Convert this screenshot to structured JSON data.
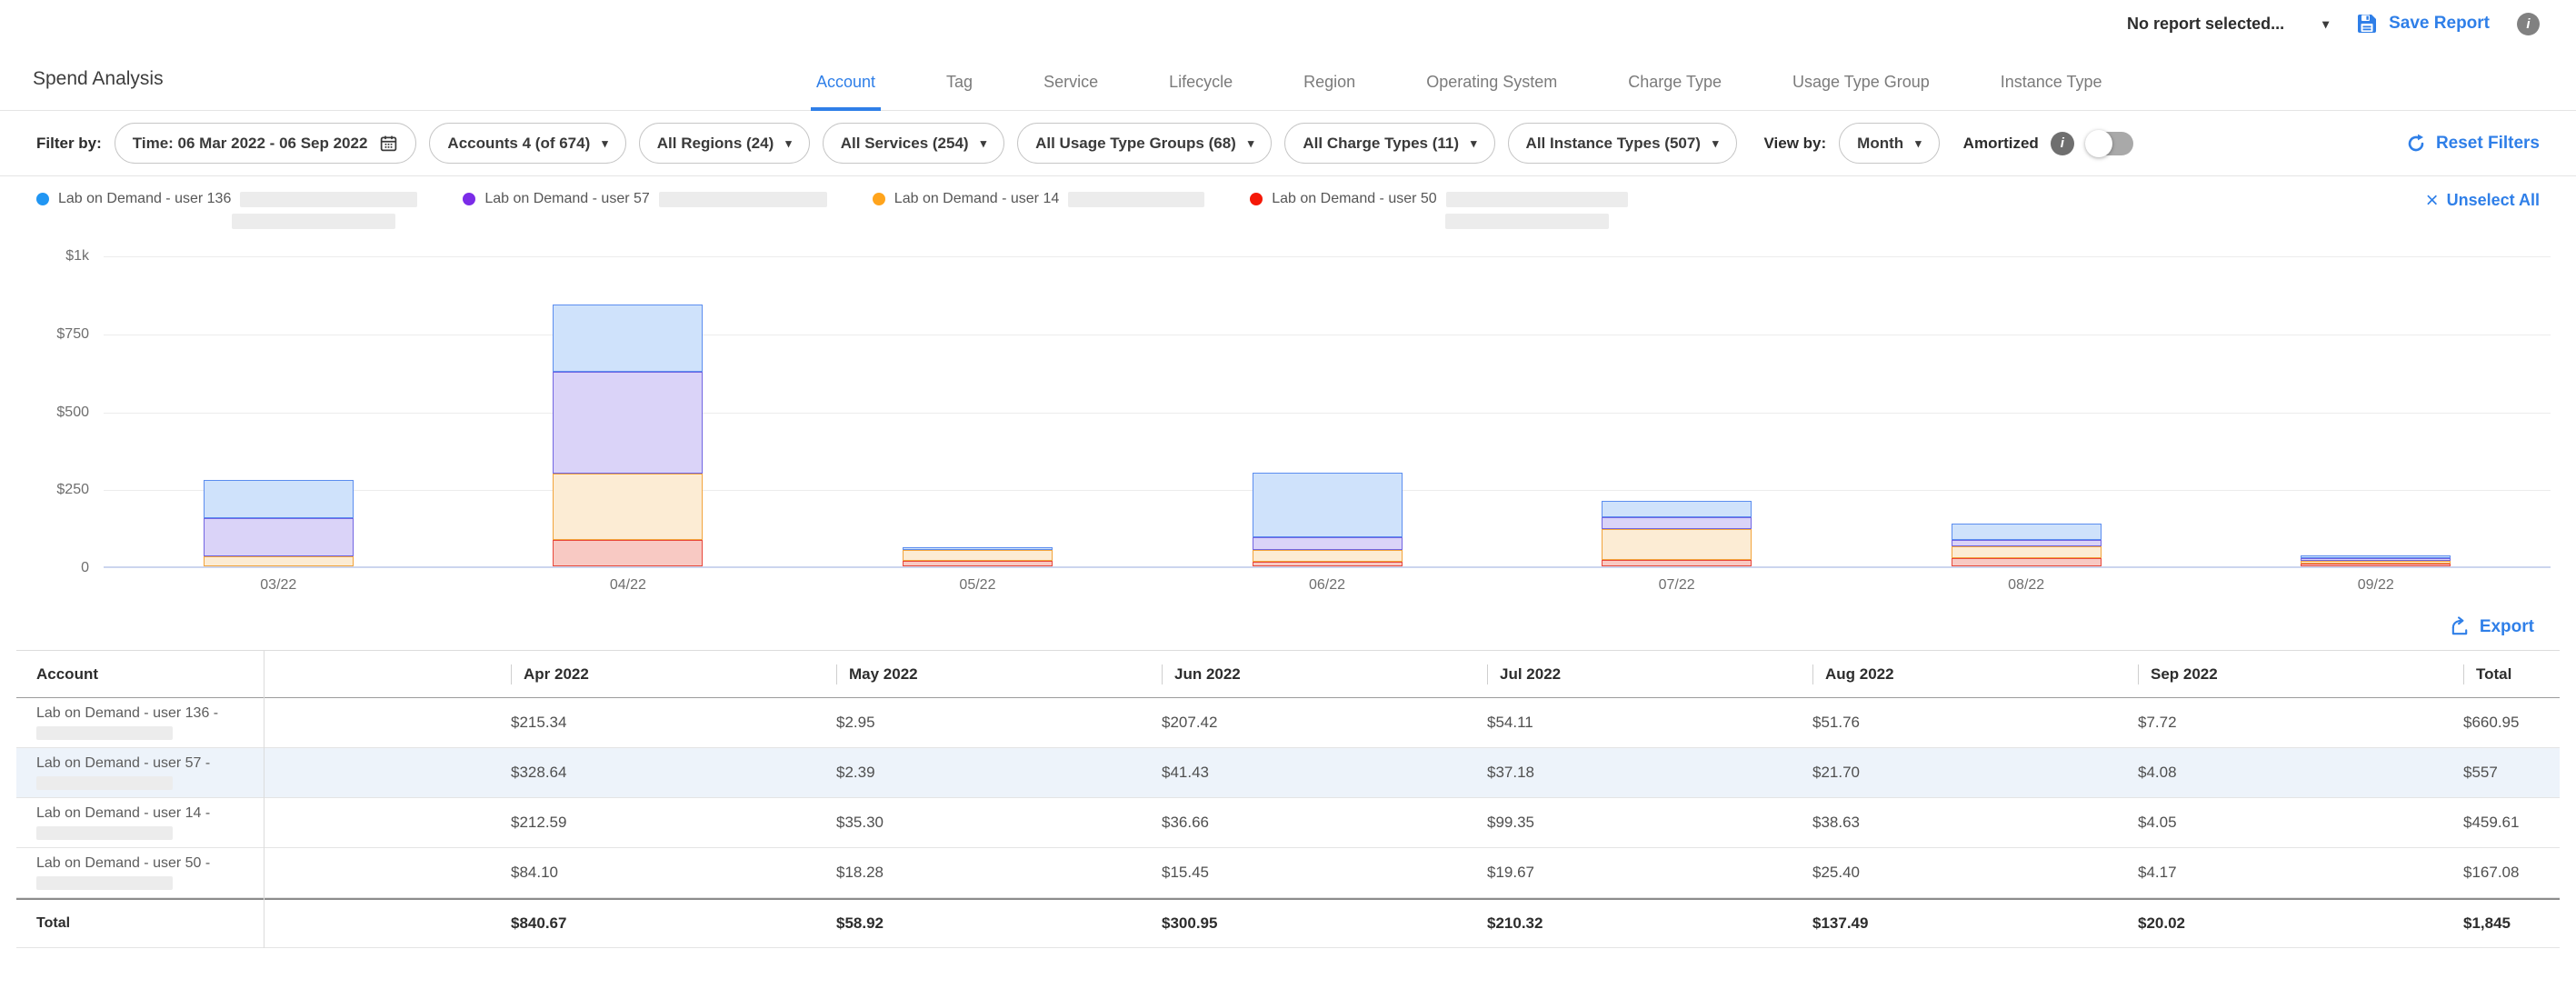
{
  "glyphs": {
    "caret": "▾",
    "info": "i",
    "close": "×"
  },
  "topbar": {
    "report_selector": "No report selected...",
    "save_report_label": "Save Report"
  },
  "header": {
    "title": "Spend Analysis",
    "tabs": [
      {
        "label": "Account",
        "active": true
      },
      {
        "label": "Tag",
        "active": false
      },
      {
        "label": "Service",
        "active": false
      },
      {
        "label": "Lifecycle",
        "active": false
      },
      {
        "label": "Region",
        "active": false
      },
      {
        "label": "Operating System",
        "active": false
      },
      {
        "label": "Charge Type",
        "active": false
      },
      {
        "label": "Usage Type Group",
        "active": false
      },
      {
        "label": "Instance Type",
        "active": false
      }
    ]
  },
  "filter_bar": {
    "label": "Filter by:",
    "time_filter": "Time: 06 Mar 2022 - 06 Sep 2022",
    "dropdowns": [
      "Accounts 4 (of 674)",
      "All Regions (24)",
      "All Services (254)",
      "All Usage Type Groups (68)",
      "All Charge Types (11)",
      "All Instance Types (507)"
    ],
    "view_by_label": "View by:",
    "view_by_value": "Month",
    "amortized_label": "Amortized",
    "amortized_on": false,
    "reset_label": "Reset Filters"
  },
  "legend": {
    "items": [
      {
        "label": "Lab on Demand - user 136",
        "color": "#2196F3",
        "redact_width": 195,
        "second_line": true
      },
      {
        "label": "Lab on Demand - user 57",
        "color": "#7B2CE8",
        "redact_width": 185,
        "second_line": false
      },
      {
        "label": "Lab on Demand - user 14",
        "color": "#FFA41C",
        "redact_width": 150,
        "second_line": false
      },
      {
        "label": "Lab on Demand - user 50",
        "color": "#F51807",
        "redact_width": 200,
        "second_line": true
      }
    ],
    "unselect_label": "Unselect All"
  },
  "chart_data": {
    "type": "bar",
    "stacked": true,
    "grid": true,
    "legend_position": "top",
    "categories": [
      "03/22",
      "04/22",
      "05/22",
      "06/22",
      "07/22",
      "08/22",
      "09/22"
    ],
    "series": [
      {
        "name": "Lab on Demand - user 50",
        "stroke": "#E8473A",
        "fill": "#F8C9C3",
        "values": [
          0.01,
          84.1,
          18.28,
          15.45,
          19.67,
          25.4,
          4.17
        ]
      },
      {
        "name": "Lab on Demand - user 14",
        "stroke": "#F2A43C",
        "fill": "#FCECD4",
        "values": [
          33.03,
          212.59,
          35.3,
          36.66,
          99.35,
          38.63,
          4.05
        ]
      },
      {
        "name": "Lab on Demand - user 57",
        "stroke": "#7165E2",
        "fill": "#DAD3F8",
        "values": [
          121.58,
          328.64,
          2.39,
          41.43,
          37.18,
          21.7,
          4.08
        ]
      },
      {
        "name": "Lab on Demand - user 136",
        "stroke": "#5B8DEF",
        "fill": "#CFE2FB",
        "values": [
          121.65,
          215.34,
          2.95,
          207.42,
          54.11,
          51.76,
          7.72
        ]
      }
    ],
    "yticks": [
      {
        "label": "$1k",
        "value": 1000
      },
      {
        "label": "$750",
        "value": 750
      },
      {
        "label": "$500",
        "value": 500
      },
      {
        "label": "$250",
        "value": 250
      },
      {
        "label": "0",
        "value": 0
      }
    ],
    "ylim": [
      0,
      1000
    ]
  },
  "table": {
    "export_label": "Export",
    "columns": [
      "Account",
      "Apr 2022",
      "May 2022",
      "Jun 2022",
      "Jul 2022",
      "Aug 2022",
      "Sep 2022",
      "Total"
    ],
    "rows": [
      {
        "account": "Lab on Demand - user 136 -",
        "highlight": false,
        "values": [
          "$215.34",
          "$2.95",
          "$207.42",
          "$54.11",
          "$51.76",
          "$7.72",
          "$660.95"
        ]
      },
      {
        "account": "Lab on Demand - user 57 -",
        "highlight": true,
        "values": [
          "$328.64",
          "$2.39",
          "$41.43",
          "$37.18",
          "$21.70",
          "$4.08",
          "$557"
        ]
      },
      {
        "account": "Lab on Demand - user 14 -",
        "highlight": false,
        "values": [
          "$212.59",
          "$35.30",
          "$36.66",
          "$99.35",
          "$38.63",
          "$4.05",
          "$459.61"
        ]
      },
      {
        "account": "Lab on Demand - user 50 -",
        "highlight": false,
        "values": [
          "$84.10",
          "$18.28",
          "$15.45",
          "$19.67",
          "$25.40",
          "$4.17",
          "$167.08"
        ]
      }
    ],
    "total_row": {
      "label": "Total",
      "values": [
        "$840.67",
        "$58.92",
        "$300.95",
        "$210.32",
        "$137.49",
        "$20.02",
        "$1,845"
      ]
    }
  }
}
